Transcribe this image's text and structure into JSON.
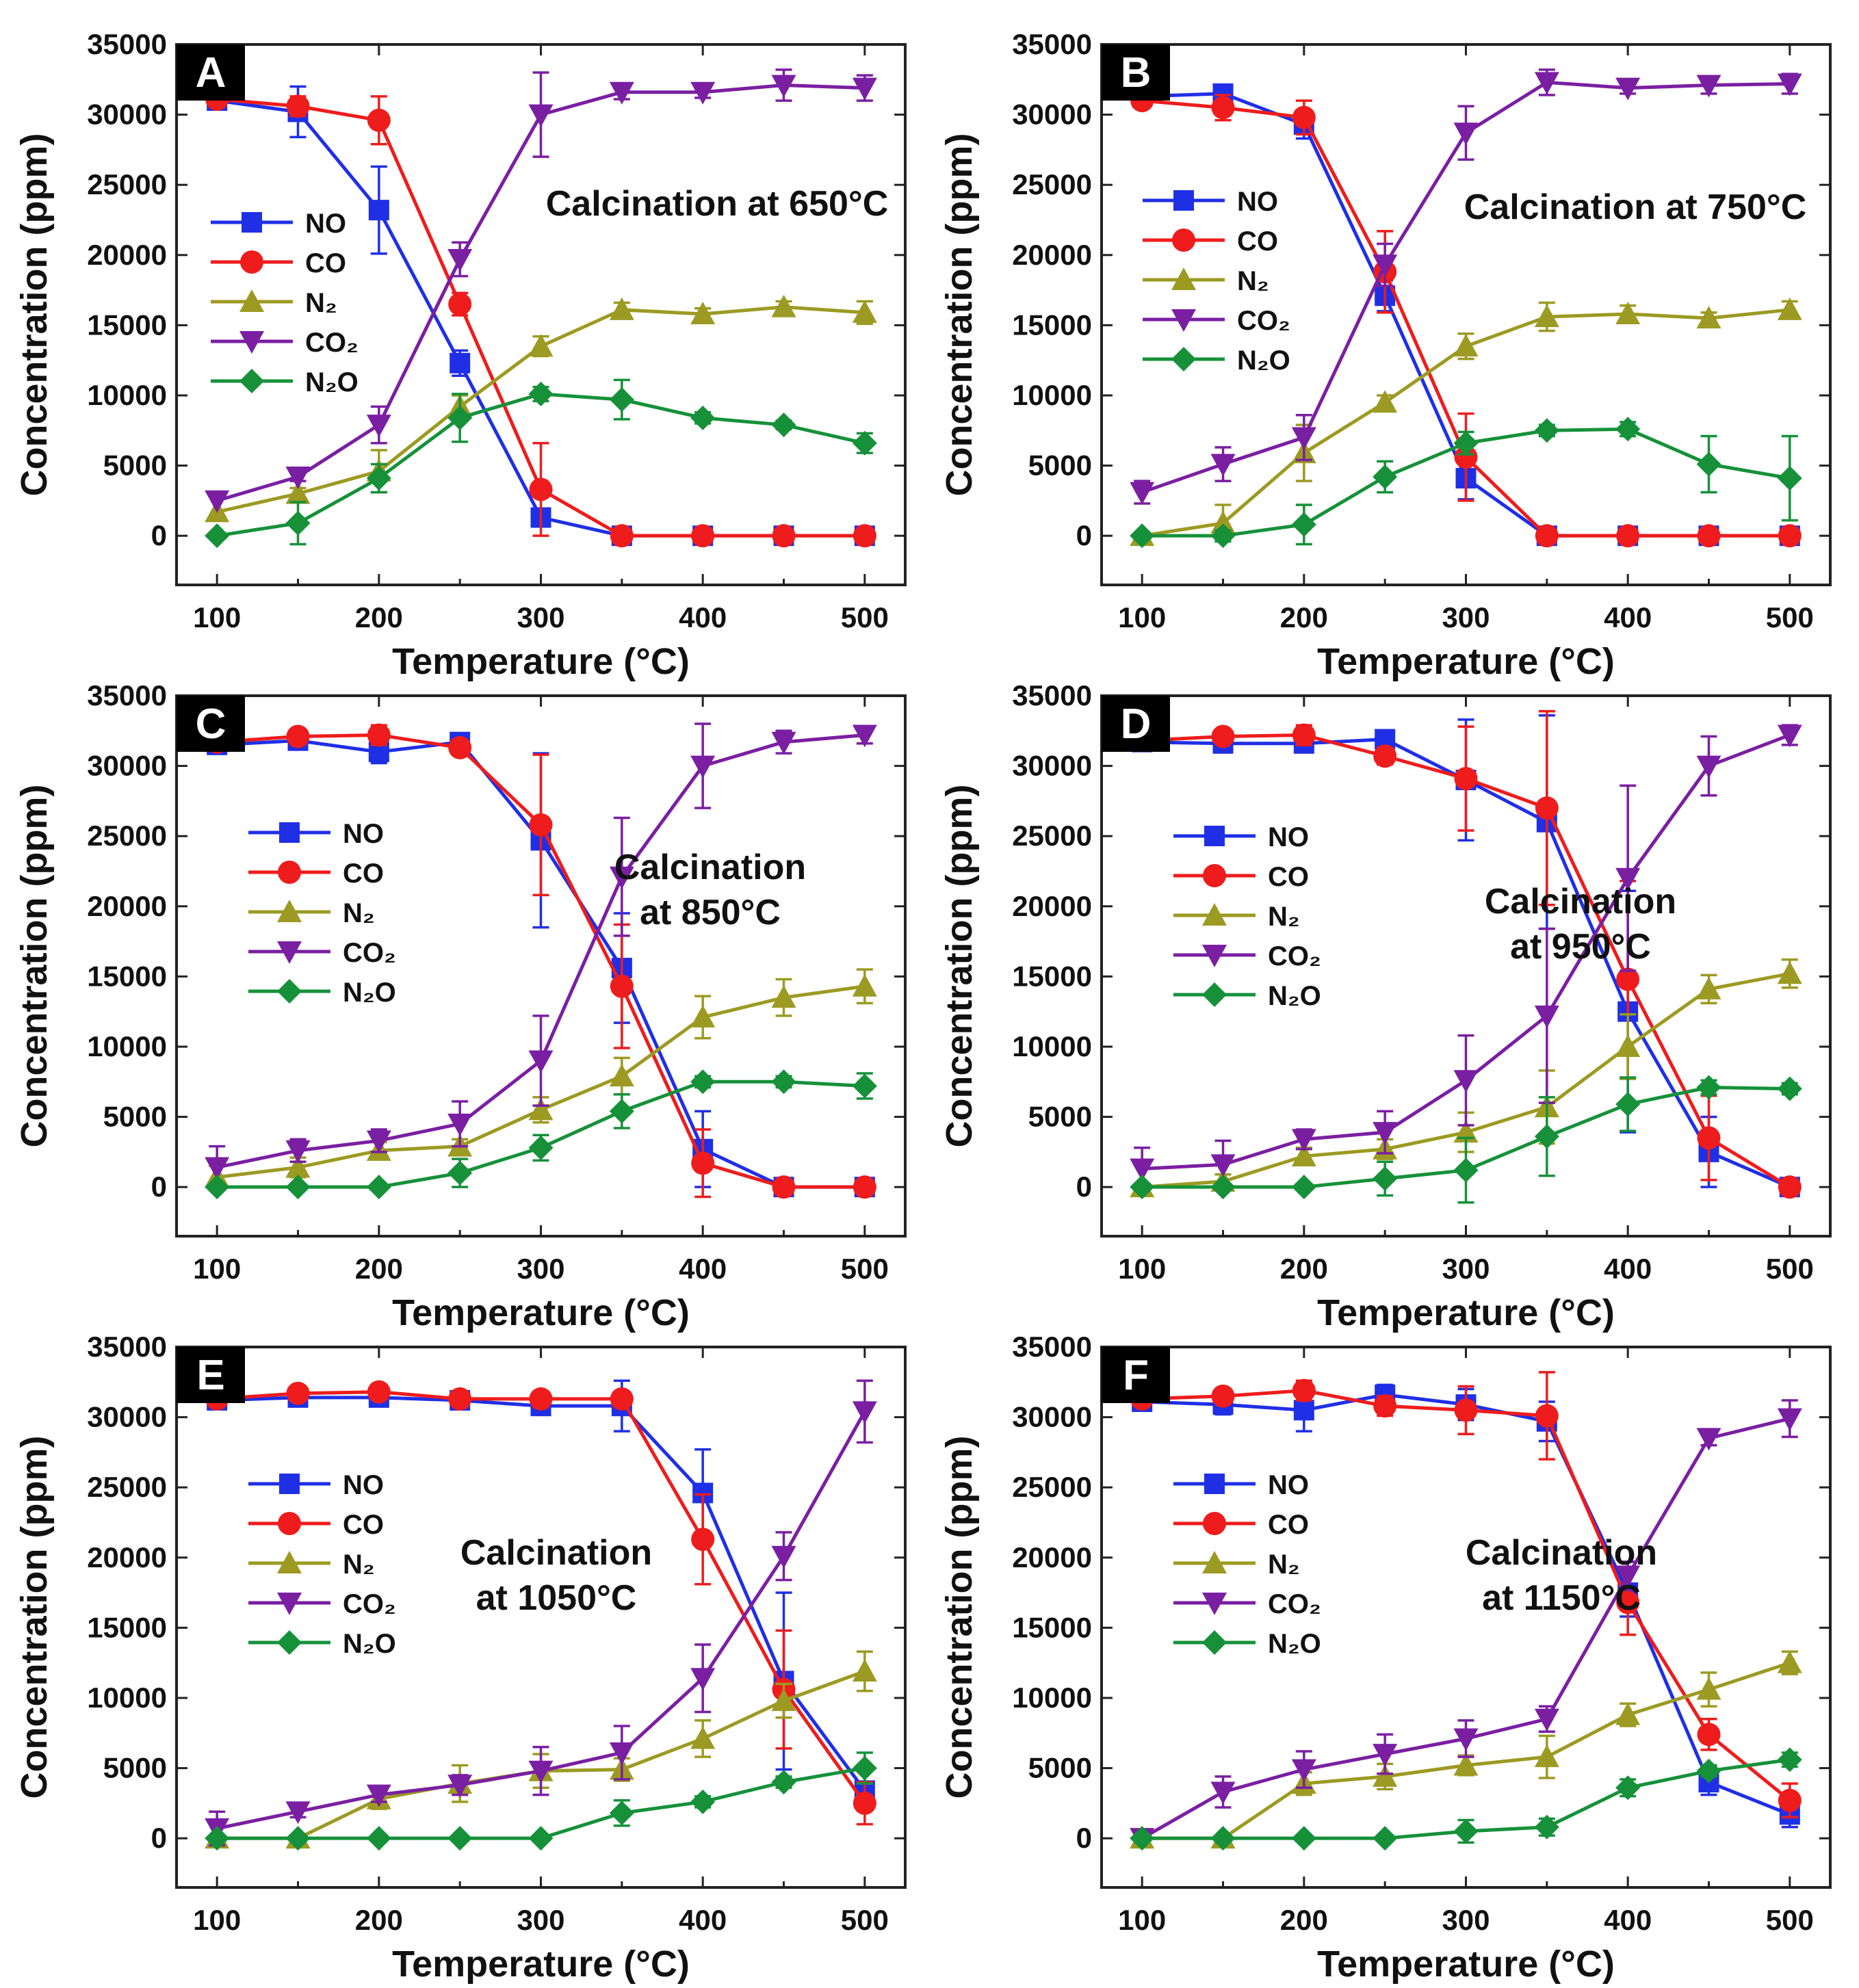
{
  "figure": {
    "x_axis_label": "Temperature (°C)",
    "y_axis_label": "Concentration (ppm)"
  },
  "series_styles": [
    {
      "name": "NO",
      "color": "#1f2fe6",
      "marker": "square"
    },
    {
      "name": "CO",
      "color": "#ee1c1c",
      "marker": "circle"
    },
    {
      "name": "N2",
      "color": "#9c9a22",
      "marker": "triangle-up"
    },
    {
      "name": "CO2",
      "color": "#7a1fa2",
      "marker": "triangle-down"
    },
    {
      "name": "N2O",
      "color": "#16913a",
      "marker": "diamond"
    }
  ],
  "chart_data": [
    {
      "type": "line",
      "panel": "A",
      "title_lines": [
        "Calcination at 650°C"
      ],
      "xlabel": "Temperature (°C)",
      "ylabel": "Concentration (ppm)",
      "xlim": [
        75,
        525
      ],
      "ylim": [
        -3500,
        35000
      ],
      "xticks": [
        100,
        200,
        300,
        400,
        500
      ],
      "yticks": [
        0,
        5000,
        10000,
        15000,
        20000,
        25000,
        30000,
        35000
      ],
      "x": [
        100,
        150,
        200,
        250,
        300,
        350,
        400,
        450,
        500
      ],
      "legend": [
        "NO",
        "CO",
        "N₂",
        "CO₂",
        "N₂O"
      ],
      "series": [
        {
          "name": "NO",
          "values": [
            31000,
            30200,
            23200,
            12300,
            1300,
            0,
            0,
            0,
            0
          ],
          "errors": [
            0,
            1800,
            3100,
            900,
            500,
            0,
            0,
            0,
            0
          ]
        },
        {
          "name": "CO",
          "values": [
            31100,
            30600,
            29600,
            16500,
            3300,
            0,
            0,
            0,
            0
          ],
          "errors": [
            0,
            700,
            1700,
            800,
            3300,
            0,
            0,
            0,
            0
          ]
        },
        {
          "name": "N2",
          "values": [
            1700,
            3000,
            4600,
            9200,
            13500,
            16100,
            15800,
            16300,
            15900
          ],
          "errors": [
            0,
            400,
            1500,
            800,
            700,
            500,
            400,
            400,
            800
          ]
        },
        {
          "name": "CO2",
          "values": [
            2500,
            4200,
            7900,
            19700,
            30000,
            31600,
            31600,
            32100,
            31900
          ],
          "errors": [
            0,
            300,
            1300,
            1200,
            3000,
            500,
            400,
            1100,
            900
          ]
        },
        {
          "name": "N2O",
          "values": [
            0,
            900,
            4100,
            8400,
            10100,
            9700,
            8400,
            7900,
            6600
          ],
          "errors": [
            0,
            1500,
            1000,
            1700,
            500,
            1400,
            400,
            300,
            700
          ]
        }
      ]
    },
    {
      "type": "line",
      "panel": "B",
      "title_lines": [
        "Calcination at 750°C"
      ],
      "xlabel": "Temperature (°C)",
      "ylabel": "Concentration (ppm)",
      "xlim": [
        75,
        525
      ],
      "ylim": [
        -3500,
        35000
      ],
      "xticks": [
        100,
        200,
        300,
        400,
        500
      ],
      "yticks": [
        0,
        5000,
        10000,
        15000,
        20000,
        25000,
        30000,
        35000
      ],
      "x": [
        100,
        150,
        200,
        250,
        300,
        350,
        400,
        450,
        500
      ],
      "legend": [
        "NO",
        "CO",
        "N₂",
        "CO₂",
        "N₂O"
      ],
      "series": [
        {
          "name": "NO",
          "values": [
            31300,
            31500,
            29300,
            17100,
            4100,
            0,
            0,
            0,
            0
          ],
          "errors": [
            0,
            500,
            1000,
            1100,
            1500,
            0,
            0,
            0,
            0
          ]
        },
        {
          "name": "CO",
          "values": [
            31000,
            30500,
            29800,
            18800,
            5600,
            0,
            0,
            0,
            0
          ],
          "errors": [
            0,
            900,
            1200,
            2900,
            3100,
            0,
            0,
            0,
            0
          ]
        },
        {
          "name": "N2",
          "values": [
            0,
            900,
            5900,
            9500,
            13500,
            15600,
            15800,
            15500,
            16100
          ],
          "errors": [
            0,
            1300,
            2000,
            500,
            900,
            1000,
            600,
            400,
            600
          ]
        },
        {
          "name": "CO2",
          "values": [
            3100,
            5100,
            7000,
            19300,
            28700,
            32300,
            31900,
            32100,
            32200
          ],
          "errors": [
            800,
            1200,
            1600,
            1500,
            1900,
            900,
            400,
            600,
            700
          ]
        },
        {
          "name": "N2O",
          "values": [
            0,
            0,
            800,
            4200,
            6600,
            7500,
            7600,
            5100,
            4100
          ],
          "errors": [
            0,
            400,
            1400,
            1100,
            800,
            400,
            500,
            2000,
            3000
          ]
        }
      ]
    },
    {
      "type": "line",
      "panel": "C",
      "title_lines": [
        "Calcination",
        "at 850°C"
      ],
      "xlabel": "Temperature (°C)",
      "ylabel": "Concentration (ppm)",
      "xlim": [
        75,
        525
      ],
      "ylim": [
        -3500,
        35000
      ],
      "xticks": [
        100,
        200,
        300,
        400,
        500
      ],
      "yticks": [
        0,
        5000,
        10000,
        15000,
        20000,
        25000,
        30000,
        35000
      ],
      "x": [
        100,
        150,
        200,
        250,
        300,
        350,
        400,
        450,
        500
      ],
      "legend": [
        "NO",
        "CO",
        "N₂",
        "CO₂",
        "N₂O"
      ],
      "series": [
        {
          "name": "NO",
          "values": [
            31500,
            31800,
            31000,
            31700,
            24700,
            15600,
            2700,
            0,
            0
          ],
          "errors": [
            0,
            500,
            800,
            300,
            6200,
            3900,
            2700,
            0,
            0
          ]
        },
        {
          "name": "CO",
          "values": [
            31700,
            32100,
            32200,
            31300,
            25800,
            14300,
            1700,
            0,
            0
          ],
          "errors": [
            0,
            500,
            700,
            500,
            5000,
            4400,
            2400,
            0,
            0
          ]
        },
        {
          "name": "N2",
          "values": [
            700,
            1400,
            2600,
            2900,
            5500,
            7900,
            12100,
            13500,
            14300
          ],
          "errors": [
            800,
            700,
            600,
            500,
            900,
            1300,
            1500,
            1300,
            1200
          ]
        },
        {
          "name": "CO2",
          "values": [
            1400,
            2600,
            3300,
            4500,
            9000,
            22100,
            30000,
            31700,
            32200
          ],
          "errors": [
            1500,
            800,
            800,
            1600,
            3200,
            4200,
            3000,
            800,
            600
          ]
        },
        {
          "name": "N2O",
          "values": [
            0,
            0,
            0,
            1000,
            2800,
            5400,
            7500,
            7500,
            7200
          ],
          "errors": [
            0,
            0,
            0,
            1000,
            900,
            1200,
            400,
            400,
            900
          ]
        }
      ]
    },
    {
      "type": "line",
      "panel": "D",
      "title_lines": [
        "Calcination",
        "at 950°C"
      ],
      "xlabel": "Temperature (°C)",
      "ylabel": "Concentration (ppm)",
      "xlim": [
        75,
        525
      ],
      "ylim": [
        -3500,
        35000
      ],
      "xticks": [
        100,
        200,
        300,
        400,
        500
      ],
      "yticks": [
        0,
        5000,
        10000,
        15000,
        20000,
        25000,
        30000,
        35000
      ],
      "x": [
        100,
        150,
        200,
        250,
        300,
        350,
        400,
        450,
        500
      ],
      "legend": [
        "NO",
        "CO",
        "N₂",
        "CO₂",
        "N₂O"
      ],
      "series": [
        {
          "name": "NO",
          "values": [
            31700,
            31600,
            31600,
            31900,
            29000,
            26000,
            12500,
            2500,
            0
          ],
          "errors": [
            0,
            500,
            500,
            400,
            4300,
            7600,
            8600,
            2500,
            0
          ]
        },
        {
          "name": "CO",
          "values": [
            31800,
            32100,
            32200,
            30700,
            29100,
            27000,
            14800,
            3500,
            0
          ],
          "errors": [
            0,
            500,
            700,
            600,
            3700,
            6900,
            7000,
            3000,
            0
          ]
        },
        {
          "name": "N2",
          "values": [
            0,
            400,
            2200,
            2700,
            3900,
            5700,
            10000,
            14100,
            15200
          ],
          "errors": [
            0,
            500,
            600,
            700,
            1400,
            2600,
            2300,
            1000,
            1000
          ]
        },
        {
          "name": "CO2",
          "values": [
            1300,
            1600,
            3400,
            3900,
            7600,
            12200,
            22000,
            30000,
            32200
          ],
          "errors": [
            1500,
            1700,
            700,
            1500,
            3200,
            6200,
            6600,
            2100,
            700
          ]
        },
        {
          "name": "N2O",
          "values": [
            0,
            0,
            0,
            600,
            1200,
            3600,
            5900,
            7100,
            7000
          ],
          "errors": [
            0,
            0,
            0,
            1200,
            2300,
            2800,
            1900,
            500,
            400
          ]
        }
      ]
    },
    {
      "type": "line",
      "panel": "E",
      "title_lines": [
        "Calcination",
        "at 1050°C"
      ],
      "xlabel": "Temperature (°C)",
      "ylabel": "Concentration (ppm)",
      "xlim": [
        75,
        525
      ],
      "ylim": [
        -3500,
        35000
      ],
      "xticks": [
        100,
        200,
        300,
        400,
        500
      ],
      "yticks": [
        0,
        5000,
        10000,
        15000,
        20000,
        25000,
        30000,
        35000
      ],
      "x": [
        100,
        150,
        200,
        250,
        300,
        350,
        400,
        450,
        500
      ],
      "legend": [
        "NO",
        "CO",
        "N₂",
        "CO₂",
        "N₂O"
      ],
      "series": [
        {
          "name": "NO",
          "values": [
            31200,
            31400,
            31400,
            31200,
            30800,
            30800,
            24600,
            11200,
            3400
          ],
          "errors": [
            0,
            500,
            400,
            400,
            400,
            1800,
            3100,
            6300,
            1400
          ]
        },
        {
          "name": "CO",
          "values": [
            31300,
            31700,
            31800,
            31300,
            31300,
            31300,
            21300,
            10600,
            2500
          ],
          "errors": [
            0,
            300,
            300,
            300,
            500,
            500,
            3200,
            4200,
            1500
          ]
        },
        {
          "name": "N2",
          "values": [
            0,
            0,
            2800,
            3900,
            4800,
            4900,
            7100,
            9800,
            11900
          ],
          "errors": [
            0,
            0,
            700,
            1300,
            1200,
            800,
            1300,
            1200,
            1400
          ]
        },
        {
          "name": "CO2",
          "values": [
            700,
            1900,
            3100,
            3800,
            4800,
            6100,
            11400,
            20100,
            30400
          ],
          "errors": [
            1200,
            400,
            500,
            700,
            1700,
            1900,
            2400,
            1700,
            2200
          ]
        },
        {
          "name": "N2O",
          "values": [
            0,
            0,
            0,
            0,
            0,
            1800,
            2600,
            4000,
            5000
          ],
          "errors": [
            0,
            0,
            0,
            0,
            0,
            900,
            400,
            400,
            1100
          ]
        }
      ]
    },
    {
      "type": "line",
      "panel": "F",
      "title_lines": [
        "Calcination",
        "at 1150°C"
      ],
      "xlabel": "Temperature (°C)",
      "ylabel": "Concentration (ppm)",
      "xlim": [
        75,
        525
      ],
      "ylim": [
        -3500,
        35000
      ],
      "xticks": [
        100,
        200,
        300,
        400,
        500
      ],
      "yticks": [
        0,
        5000,
        10000,
        15000,
        20000,
        25000,
        30000,
        35000
      ],
      "x": [
        100,
        150,
        200,
        250,
        300,
        350,
        400,
        450,
        500
      ],
      "legend": [
        "NO",
        "CO",
        "N₂",
        "CO₂",
        "N₂O"
      ],
      "series": [
        {
          "name": "NO",
          "values": [
            31100,
            30900,
            30500,
            31600,
            30900,
            29700,
            17500,
            4000,
            1700
          ],
          "errors": [
            0,
            700,
            1500,
            700,
            1100,
            1400,
            1700,
            900,
            900
          ]
        },
        {
          "name": "CO",
          "values": [
            31300,
            31500,
            31900,
            30800,
            30500,
            30100,
            16800,
            7400,
            2700
          ],
          "errors": [
            0,
            500,
            700,
            700,
            1700,
            3100,
            2300,
            1100,
            1200
          ]
        },
        {
          "name": "N2",
          "values": [
            0,
            0,
            3900,
            4400,
            5200,
            5800,
            8800,
            10600,
            12500
          ],
          "errors": [
            0,
            0,
            800,
            900,
            700,
            1500,
            800,
            1200,
            800
          ]
        },
        {
          "name": "CO2",
          "values": [
            0,
            3300,
            4900,
            6000,
            7100,
            8500,
            18700,
            28500,
            29900
          ],
          "errors": [
            0,
            1100,
            1300,
            1400,
            1300,
            900,
            1000,
            500,
            1300
          ]
        },
        {
          "name": "N2O",
          "values": [
            0,
            0,
            0,
            0,
            500,
            800,
            3600,
            4800,
            5600
          ],
          "errors": [
            0,
            0,
            0,
            0,
            800,
            600,
            600,
            400,
            500
          ]
        }
      ]
    }
  ]
}
